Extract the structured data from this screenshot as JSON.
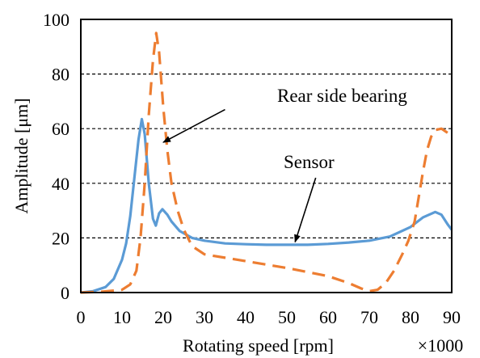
{
  "chart_data": {
    "type": "line",
    "xlabel": "Rotating speed [rpm]",
    "ylabel": "Amplitude [μm]",
    "x_multiplier_label": "×1000",
    "xlim": [
      0,
      90
    ],
    "ylim": [
      0,
      100
    ],
    "x_ticks": [
      0,
      10,
      20,
      30,
      40,
      50,
      60,
      70,
      80,
      90
    ],
    "y_ticks": [
      0,
      20,
      40,
      60,
      80,
      100
    ],
    "grid": "horizontal-dashed",
    "series": [
      {
        "name": "Sensor",
        "color": "#5b9bd5",
        "dash": "solid",
        "points": [
          [
            0,
            0
          ],
          [
            3,
            0.5
          ],
          [
            6,
            2
          ],
          [
            8,
            5
          ],
          [
            10,
            12
          ],
          [
            11,
            18
          ],
          [
            12,
            28
          ],
          [
            13,
            42
          ],
          [
            14,
            56
          ],
          [
            14.8,
            63.5
          ],
          [
            15.5,
            58
          ],
          [
            16.5,
            40
          ],
          [
            17.5,
            27
          ],
          [
            18.2,
            24.5
          ],
          [
            19,
            29
          ],
          [
            19.8,
            30.5
          ],
          [
            21,
            28.5
          ],
          [
            22,
            26
          ],
          [
            24,
            22.5
          ],
          [
            27,
            20
          ],
          [
            30,
            19
          ],
          [
            35,
            18
          ],
          [
            40,
            17.7
          ],
          [
            45,
            17.5
          ],
          [
            50,
            17.5
          ],
          [
            55,
            17.5
          ],
          [
            60,
            17.8
          ],
          [
            65,
            18.3
          ],
          [
            70,
            19
          ],
          [
            75,
            20.5
          ],
          [
            80,
            24
          ],
          [
            83,
            27.5
          ],
          [
            86,
            29.5
          ],
          [
            87.5,
            28.5
          ],
          [
            89,
            25
          ],
          [
            90,
            23
          ]
        ]
      },
      {
        "name": "Rear side bearing",
        "color": "#ed7d31",
        "dash": "dashed",
        "points": [
          [
            0,
            0
          ],
          [
            5,
            0.3
          ],
          [
            10,
            1
          ],
          [
            12,
            3
          ],
          [
            13.5,
            8
          ],
          [
            14.5,
            20
          ],
          [
            15.5,
            40
          ],
          [
            16.5,
            65
          ],
          [
            17.5,
            85
          ],
          [
            18.3,
            95
          ],
          [
            19,
            88
          ],
          [
            20,
            68
          ],
          [
            21,
            52
          ],
          [
            22,
            40
          ],
          [
            23.5,
            30
          ],
          [
            25,
            23
          ],
          [
            27,
            17
          ],
          [
            30,
            14
          ],
          [
            40,
            11.5
          ],
          [
            50,
            9
          ],
          [
            60,
            6
          ],
          [
            65,
            3.5
          ],
          [
            68,
            1.5
          ],
          [
            70,
            0.5
          ],
          [
            72,
            1
          ],
          [
            74,
            3.5
          ],
          [
            76,
            8
          ],
          [
            78,
            14
          ],
          [
            79.5,
            19
          ],
          [
            81,
            26
          ],
          [
            82,
            35
          ],
          [
            83,
            44
          ],
          [
            84,
            52
          ],
          [
            85,
            57
          ],
          [
            86,
            59.5
          ],
          [
            87.5,
            60
          ],
          [
            89,
            58.5
          ],
          [
            90,
            57
          ]
        ]
      }
    ],
    "annotations": [
      {
        "text": "Rear side bearing",
        "x": 50,
        "y": 71,
        "arrow_from": [
          35,
          67
        ],
        "arrow_to": [
          20,
          55
        ]
      },
      {
        "text": "Sensor",
        "x": 50,
        "y": 47,
        "arrow_from": [
          57,
          42
        ],
        "arrow_to": [
          52,
          18.5
        ]
      }
    ]
  }
}
